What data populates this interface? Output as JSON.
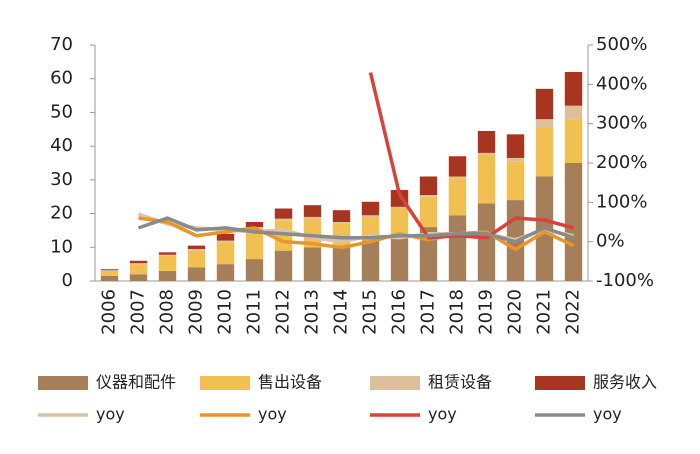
{
  "chart_data": {
    "type": "bar",
    "categories": [
      "2006",
      "2007",
      "2008",
      "2009",
      "2010",
      "2011",
      "2012",
      "2013",
      "2014",
      "2015",
      "2016",
      "2017",
      "2018",
      "2019",
      "2020",
      "2021",
      "2022"
    ],
    "series": [
      {
        "name": "仪器和配件",
        "color": "#a57f5a",
        "values": [
          1.5,
          2,
          3,
          4,
          5,
          6.5,
          9,
          10,
          10,
          12,
          13,
          16,
          19.5,
          23,
          24,
          31,
          35
        ]
      },
      {
        "name": "售出设备",
        "color": "#f2c050",
        "values": [
          1.5,
          3,
          4.5,
          5,
          6.5,
          9,
          9,
          8.5,
          7,
          7,
          8.5,
          9,
          11,
          14.5,
          11.5,
          14.5,
          13
        ]
      },
      {
        "name": "租赁设备",
        "color": "#dcbf9c",
        "values": [
          0.2,
          0.3,
          0.3,
          0.5,
          0.5,
          0.5,
          0.5,
          0.5,
          0.5,
          0.5,
          0.5,
          0.5,
          0.5,
          0.5,
          1,
          2.5,
          4
        ]
      },
      {
        "name": "服务收入",
        "color": "#a8351f",
        "values": [
          0.3,
          0.7,
          0.7,
          1,
          2,
          1.5,
          3,
          3.5,
          3.5,
          4,
          5,
          5.5,
          6,
          6.5,
          7,
          9,
          10
        ]
      },
      {
        "name": "yoy",
        "color": "#d8c4a6",
        "type": "line",
        "axis": "y2",
        "values": [
          null,
          70,
          45,
          35,
          30,
          25,
          30,
          10,
          0,
          15,
          10,
          20,
          20,
          20,
          5,
          30,
          15
        ]
      },
      {
        "name": "yoy",
        "color": "#e8952b",
        "type": "line",
        "axis": "y2",
        "values": [
          null,
          60,
          50,
          15,
          25,
          35,
          0,
          -5,
          -15,
          0,
          20,
          5,
          20,
          25,
          -20,
          25,
          -10
        ]
      },
      {
        "name": "yoy",
        "color": "#d9423a",
        "type": "line",
        "axis": "y2",
        "values": [
          null,
          null,
          null,
          null,
          null,
          null,
          null,
          null,
          null,
          430,
          120,
          10,
          15,
          10,
          60,
          55,
          35
        ]
      },
      {
        "name": "yoy",
        "color": "#8a8a8a",
        "type": "line",
        "axis": "y2",
        "values": [
          null,
          35,
          60,
          30,
          35,
          25,
          20,
          15,
          10,
          10,
          15,
          15,
          20,
          20,
          0,
          35,
          10
        ]
      }
    ],
    "ylim": [
      0,
      70
    ],
    "yticks": [
      0,
      10,
      20,
      30,
      40,
      50,
      60,
      70
    ],
    "y2lim": [
      -100,
      500
    ],
    "y2ticks": [
      {
        "value": -100,
        "label": "-100%"
      },
      {
        "value": 0,
        "label": "0%"
      },
      {
        "value": 100,
        "label": "100%"
      },
      {
        "value": 200,
        "label": "200%"
      },
      {
        "value": 300,
        "label": "300%"
      },
      {
        "value": 400,
        "label": "400%"
      },
      {
        "value": 500,
        "label": "500%"
      }
    ],
    "stacked": true
  }
}
